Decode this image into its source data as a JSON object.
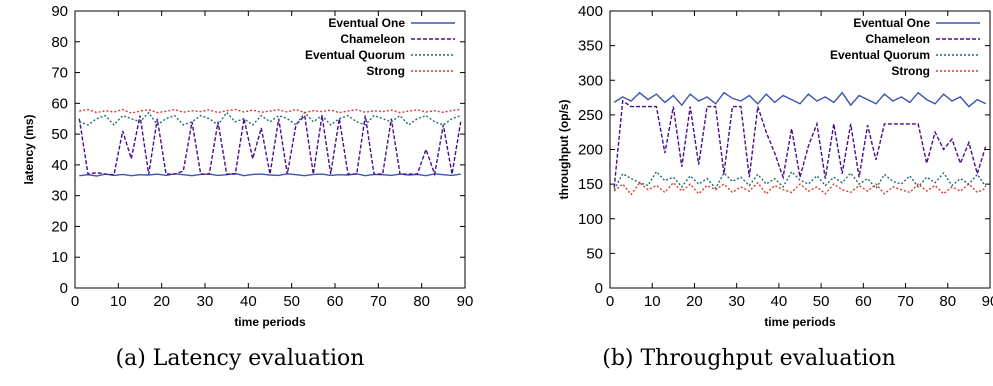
{
  "chart_data": [
    {
      "type": "line",
      "caption": "(a) Latency evaluation",
      "xlabel": "time periods",
      "ylabel": "latency (ms)",
      "xlim": [
        0,
        90
      ],
      "ylim": [
        0,
        90
      ],
      "xticks": [
        0,
        10,
        20,
        30,
        40,
        50,
        60,
        70,
        80,
        90
      ],
      "yticks": [
        0,
        10,
        20,
        30,
        40,
        50,
        60,
        70,
        80,
        90
      ],
      "grid": false,
      "legend_position": "top-right",
      "x": [
        1,
        3,
        5,
        7,
        9,
        11,
        13,
        15,
        17,
        19,
        21,
        23,
        25,
        27,
        29,
        31,
        33,
        35,
        37,
        39,
        41,
        43,
        45,
        47,
        49,
        51,
        53,
        55,
        57,
        59,
        61,
        63,
        65,
        67,
        69,
        71,
        73,
        75,
        77,
        79,
        81,
        83,
        85,
        87,
        89
      ],
      "series": [
        {
          "name": "Eventual One",
          "color": "#3a56b0",
          "dash": "",
          "values": [
            36.5,
            36.8,
            36.4,
            37,
            36.6,
            36.9,
            36.5,
            36.8,
            36.7,
            37,
            36.6,
            37.1,
            36.8,
            36.5,
            36.9,
            37,
            36.6,
            36.8,
            37.2,
            36.5,
            36.9,
            37,
            36.7,
            36.6,
            37.1,
            36.8,
            36.5,
            36.9,
            37,
            36.6,
            36.8,
            36.7,
            37.1,
            36.5,
            36.9,
            36.8,
            36.6,
            37,
            36.7,
            36.9,
            36.5,
            37.1,
            36.8,
            36.6,
            37
          ]
        },
        {
          "name": "Chameleon",
          "color": "#4b0c8c",
          "dash": "4,2",
          "values": [
            55,
            37,
            37.5,
            37,
            36.8,
            51,
            42,
            56,
            37,
            55,
            37,
            37,
            38,
            54,
            37,
            37,
            54,
            37,
            37,
            55,
            42,
            52,
            37,
            55,
            37,
            53,
            56,
            37,
            56,
            37,
            55,
            37,
            37,
            56,
            37,
            37,
            55,
            37,
            37,
            37,
            45,
            37,
            53,
            37,
            54
          ]
        },
        {
          "name": "Eventual Quorum",
          "color": "#1f6e6e",
          "dash": "2,2",
          "values": [
            54,
            53,
            55,
            56,
            53,
            56,
            55,
            54,
            57,
            53,
            55,
            56,
            53,
            54,
            56,
            55,
            53,
            57,
            54,
            55,
            53,
            56,
            54,
            56,
            55,
            53,
            57,
            54,
            56,
            53,
            55,
            56,
            54,
            53,
            56,
            55,
            54,
            56,
            53,
            55,
            56,
            54,
            53,
            55,
            56
          ]
        },
        {
          "name": "Strong",
          "color": "#d93a2b",
          "dash": "2,2",
          "values": [
            57.5,
            58,
            57,
            57.6,
            57.2,
            58,
            56.8,
            57.5,
            57.9,
            57,
            57.4,
            58,
            57.1,
            57.6,
            57.3,
            57.9,
            57,
            57.6,
            58,
            57.2,
            57.8,
            57.1,
            57.5,
            57.9,
            57.2,
            58,
            57,
            57.6,
            57.3,
            57.8,
            57,
            57.5,
            57.9,
            57.1,
            57.6,
            57.3,
            57.8,
            57,
            57.5,
            57.9,
            57.2,
            57.6,
            57.1,
            57.7,
            58
          ]
        }
      ]
    },
    {
      "type": "line",
      "caption": "(b) Throughput evaluation",
      "xlabel": "time periods",
      "ylabel": "throughput (op/s)",
      "xlim": [
        0,
        90
      ],
      "ylim": [
        0,
        400
      ],
      "xticks": [
        0,
        10,
        20,
        30,
        40,
        50,
        60,
        70,
        80,
        90
      ],
      "yticks": [
        0,
        50,
        100,
        150,
        200,
        250,
        300,
        350,
        400
      ],
      "grid": false,
      "legend_position": "top-right",
      "x": [
        1,
        3,
        5,
        7,
        9,
        11,
        13,
        15,
        17,
        19,
        21,
        23,
        25,
        27,
        29,
        31,
        33,
        35,
        37,
        39,
        41,
        43,
        45,
        47,
        49,
        51,
        53,
        55,
        57,
        59,
        61,
        63,
        65,
        67,
        69,
        71,
        73,
        75,
        77,
        79,
        81,
        83,
        85,
        87,
        89
      ],
      "series": [
        {
          "name": "Eventual One",
          "color": "#3a56b0",
          "dash": "",
          "values": [
            268,
            276,
            270,
            282,
            272,
            280,
            268,
            278,
            264,
            280,
            270,
            276,
            266,
            282,
            274,
            270,
            278,
            266,
            280,
            268,
            278,
            272,
            266,
            280,
            270,
            276,
            268,
            282,
            264,
            278,
            272,
            266,
            280,
            270,
            276,
            268,
            282,
            272,
            266,
            280,
            270,
            276,
            262,
            272,
            266
          ]
        },
        {
          "name": "Chameleon",
          "color": "#4b0c8c",
          "dash": "4,2",
          "values": [
            145,
            270,
            262,
            262,
            262,
            262,
            195,
            262,
            175,
            262,
            178,
            262,
            262,
            165,
            262,
            262,
            160,
            262,
            225,
            195,
            160,
            230,
            160,
            205,
            237,
            158,
            237,
            165,
            237,
            160,
            235,
            185,
            237,
            237,
            237,
            237,
            237,
            180,
            225,
            200,
            215,
            180,
            210,
            165,
            205
          ]
        },
        {
          "name": "Eventual Quorum",
          "color": "#1f6e6e",
          "dash": "2,2",
          "values": [
            142,
            165,
            158,
            152,
            148,
            168,
            155,
            160,
            146,
            162,
            150,
            158,
            144,
            166,
            154,
            160,
            148,
            164,
            150,
            158,
            146,
            168,
            156,
            150,
            162,
            148,
            160,
            152,
            166,
            150,
            158,
            144,
            164,
            154,
            150,
            162,
            146,
            160,
            152,
            166,
            148,
            158,
            150,
            164,
            146
          ]
        },
        {
          "name": "Strong",
          "color": "#d93a2b",
          "dash": "2,2",
          "values": [
            140,
            150,
            135,
            152,
            142,
            148,
            138,
            152,
            140,
            150,
            136,
            148,
            142,
            150,
            138,
            146,
            140,
            152,
            136,
            148,
            142,
            138,
            150,
            140,
            146,
            136,
            150,
            142,
            138,
            148,
            140,
            150,
            136,
            146,
            142,
            138,
            150,
            140,
            148,
            136,
            146,
            140,
            150,
            138,
            144
          ]
        }
      ]
    }
  ]
}
